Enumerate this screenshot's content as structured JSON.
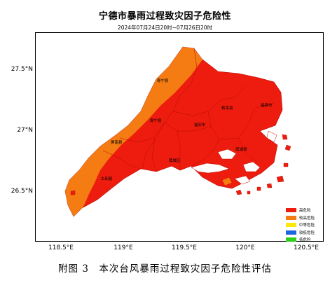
{
  "map": {
    "title": "宁德市暴雨过程致灾因子危险性",
    "subtitle": "2024年07月24日20时~07月26日20时",
    "caption": "附图 3　本次台风暴雨过程致灾因子危险性评估",
    "axes": {
      "y_ticks": [
        "27.5°N",
        "27°N",
        "26.5°N"
      ],
      "x_ticks": [
        "118.5°E",
        "119°E",
        "119.5°E",
        "120°E",
        "120.5°E"
      ]
    },
    "counties": [
      "寿宁县",
      "柘荣县",
      "福鼎市",
      "周宁县",
      "福安市",
      "屏南县",
      "霞浦县",
      "古田县",
      "蕉城区"
    ],
    "legend": [
      {
        "label": "高危险",
        "color": "#ee1c0e"
      },
      {
        "label": "较高危险",
        "color": "#f47c13"
      },
      {
        "label": "中等危险",
        "color": "#fde70c"
      },
      {
        "label": "较低危险",
        "color": "#1e66e0"
      },
      {
        "label": "低危险",
        "color": "#2dcf1a"
      }
    ],
    "colors": {
      "high": "#ee1c0e",
      "higher": "#f47c13",
      "boundary": "#b80a05"
    }
  }
}
